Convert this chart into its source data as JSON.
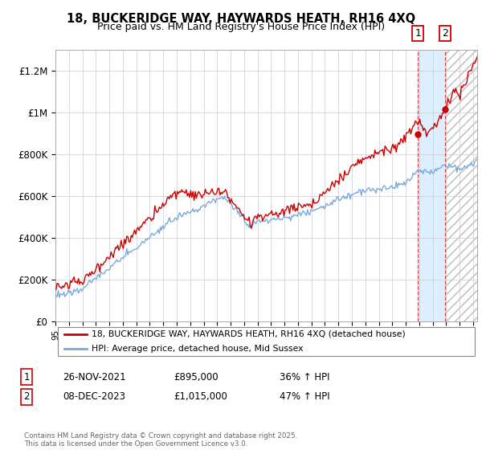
{
  "title1": "18, BUCKERIDGE WAY, HAYWARDS HEATH, RH16 4XQ",
  "title2": "Price paid vs. HM Land Registry's House Price Index (HPI)",
  "ylabel_ticks": [
    "£0",
    "£200K",
    "£400K",
    "£600K",
    "£800K",
    "£1M",
    "£1.2M"
  ],
  "ytick_values": [
    0,
    200000,
    400000,
    600000,
    800000,
    1000000,
    1200000
  ],
  "ylim": [
    0,
    1300000
  ],
  "xlim_start": 1995.0,
  "xlim_end": 2026.3,
  "legend_line1": "18, BUCKERIDGE WAY, HAYWARDS HEATH, RH16 4XQ (detached house)",
  "legend_line2": "HPI: Average price, detached house, Mid Sussex",
  "annotation1_date": "26-NOV-2021",
  "annotation1_price": "£895,000",
  "annotation1_hpi": "36% ↑ HPI",
  "annotation2_date": "08-DEC-2023",
  "annotation2_price": "£1,015,000",
  "annotation2_hpi": "47% ↑ HPI",
  "event1_year": 2021.91,
  "event1_price": 895000,
  "event2_year": 2023.94,
  "event2_price": 1015000,
  "red_color": "#cc0000",
  "blue_color": "#7aaadd",
  "shade_color": "#ddeeff",
  "hatch_start": 2024.0,
  "copyright_text": "Contains HM Land Registry data © Crown copyright and database right 2025.\nThis data is licensed under the Open Government Licence v3.0."
}
